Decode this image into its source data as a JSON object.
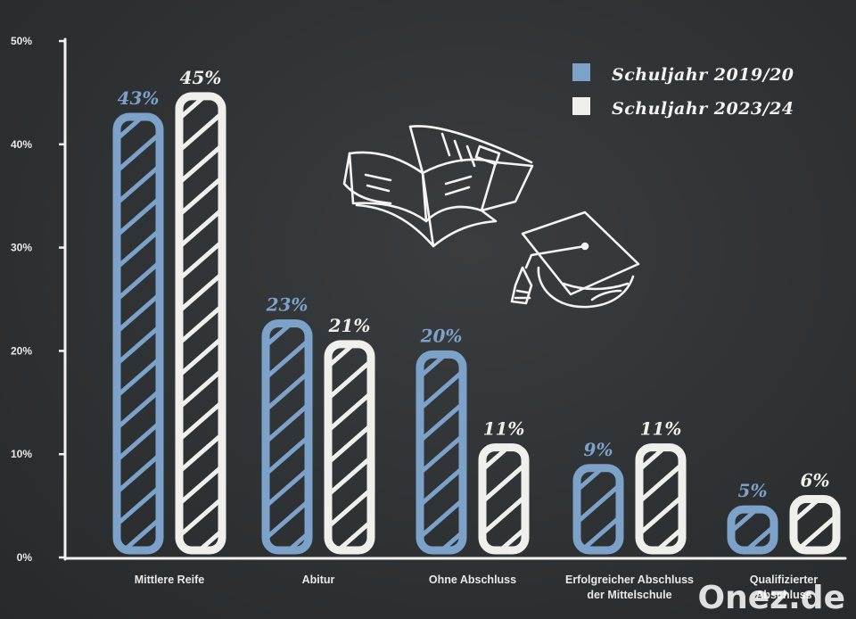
{
  "chart_data": {
    "type": "bar",
    "categories": [
      [
        "Mittlere Reife"
      ],
      [
        "Abitur"
      ],
      [
        "Ohne Abschluss"
      ],
      [
        "Erfolgreicher Abschluss",
        "der Mittelschule"
      ],
      [
        "Qualifizierter",
        "Abschluss"
      ]
    ],
    "series": [
      {
        "name": "Schuljahr 2019/20",
        "values": [
          43,
          23,
          20,
          9,
          5
        ],
        "labels": [
          "43%",
          "23%",
          "20%",
          "9%",
          "5%"
        ],
        "color": "#7da2c9"
      },
      {
        "name": "Schuljahr 2023/24",
        "values": [
          45,
          21,
          11,
          11,
          6
        ],
        "labels": [
          "45%",
          "21%",
          "11%",
          "11%",
          "6%"
        ],
        "color": "#efefeb"
      }
    ],
    "yticks": [
      "0%",
      "10%",
      "20%",
      "30%",
      "40%",
      "50%"
    ],
    "ylim": [
      0,
      50
    ],
    "grid": false,
    "legend": "top-right",
    "decorations": [
      "open-book-icon",
      "graduation-cap-icon"
    ]
  },
  "brand": "Onez.de"
}
